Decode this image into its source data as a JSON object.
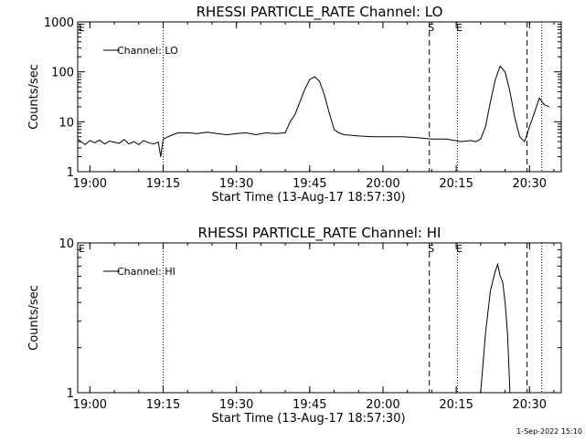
{
  "chart_data": [
    {
      "type": "line",
      "title": "RHESSI PARTICLE_RATE Channel: LO",
      "xlabel": "Start Time (13-Aug-17 18:57:30)",
      "ylabel": "Counts/sec",
      "yscale": "log",
      "ylim": [
        1,
        1000
      ],
      "xlim": [
        "18:57:30",
        "20:36:30"
      ],
      "xticks": [
        "19:00",
        "19:15",
        "19:30",
        "19:45",
        "20:00",
        "20:15",
        "20:30"
      ],
      "yticks": [
        "1",
        "10",
        "100",
        "1000"
      ],
      "legend": "upper-left",
      "series": [
        {
          "name": "Channel: LO",
          "x": [
            "18:57:30",
            "18:59",
            "19:00",
            "19:01",
            "19:02",
            "19:03",
            "19:04",
            "19:05",
            "19:06",
            "19:07",
            "19:08",
            "19:09",
            "19:10",
            "19:11",
            "19:12",
            "19:13",
            "19:14",
            "19:14:30",
            "19:15",
            "19:16",
            "19:17",
            "19:18",
            "19:20",
            "19:22",
            "19:24",
            "19:26",
            "19:28",
            "19:30",
            "19:32",
            "19:34",
            "19:36",
            "19:38",
            "19:40",
            "19:41",
            "19:42",
            "19:43",
            "19:44",
            "19:45",
            "19:46",
            "19:47",
            "19:48",
            "19:49",
            "19:50",
            "19:51",
            "19:52",
            "19:55",
            "19:58",
            "20:01",
            "20:04",
            "20:07",
            "20:10",
            "20:13",
            "20:16",
            "20:18",
            "20:19",
            "20:20",
            "20:21",
            "20:22",
            "20:23",
            "20:24",
            "20:25",
            "20:26",
            "20:27",
            "20:28",
            "20:29",
            "20:30",
            "20:31",
            "20:32",
            "20:33",
            "20:34"
          ],
          "values": [
            4.5,
            3.5,
            4.2,
            3.8,
            4.3,
            3.6,
            4.1,
            3.9,
            3.7,
            4.4,
            3.6,
            4.0,
            3.5,
            4.2,
            3.8,
            3.6,
            3.9,
            2.0,
            4.5,
            5.0,
            5.5,
            6.0,
            6.0,
            5.8,
            6.2,
            5.8,
            5.5,
            5.8,
            6.0,
            5.5,
            6.0,
            5.8,
            6.0,
            10,
            14,
            25,
            45,
            70,
            80,
            65,
            35,
            15,
            7,
            6,
            5.5,
            5.2,
            5.0,
            5.0,
            5.0,
            4.8,
            4.5,
            4.5,
            4.0,
            4.2,
            4.0,
            4.5,
            8,
            25,
            70,
            130,
            100,
            40,
            12,
            5,
            4,
            8,
            15,
            30,
            22,
            20
          ]
        }
      ],
      "markers": [
        {
          "time": "20:09:30",
          "label": "S",
          "style": "dashed"
        },
        {
          "time": "20:15:15",
          "label": "E",
          "style": "dotted"
        },
        {
          "time": "20:29:30",
          "label": "",
          "style": "dashed"
        },
        {
          "time": "20:32:30",
          "label": "",
          "style": "dotted"
        },
        {
          "time": "19:15",
          "label": "",
          "style": "dotted"
        }
      ],
      "corner_mark": "E"
    },
    {
      "type": "line",
      "title": "RHESSI PARTICLE_RATE Channel: HI",
      "xlabel": "Start Time (13-Aug-17 18:57:30)",
      "ylabel": "Counts/sec",
      "yscale": "log",
      "ylim": [
        1,
        10
      ],
      "xlim": [
        "18:57:30",
        "20:36:30"
      ],
      "xticks": [
        "19:00",
        "19:15",
        "19:30",
        "19:45",
        "20:00",
        "20:15",
        "20:30"
      ],
      "yticks": [
        "1",
        "10"
      ],
      "legend": "upper-left",
      "series": [
        {
          "name": "Channel: HI",
          "x": [
            "20:20",
            "20:21",
            "20:22",
            "20:23",
            "20:23:30",
            "20:24",
            "20:24:30",
            "20:25",
            "20:25:30",
            "20:26"
          ],
          "values": [
            1.0,
            2.5,
            4.8,
            6.5,
            7.2,
            6.0,
            5.5,
            4.0,
            2.5,
            1.0
          ]
        }
      ],
      "markers": [
        {
          "time": "20:09:30",
          "label": "S",
          "style": "dashed"
        },
        {
          "time": "20:15:15",
          "label": "E",
          "style": "dotted"
        },
        {
          "time": "20:29:30",
          "label": "",
          "style": "dashed"
        },
        {
          "time": "20:32:30",
          "label": "",
          "style": "dotted"
        },
        {
          "time": "19:15",
          "label": "",
          "style": "dotted"
        }
      ],
      "corner_mark": "E"
    }
  ],
  "footer": "1-Sep-2022 15:10"
}
